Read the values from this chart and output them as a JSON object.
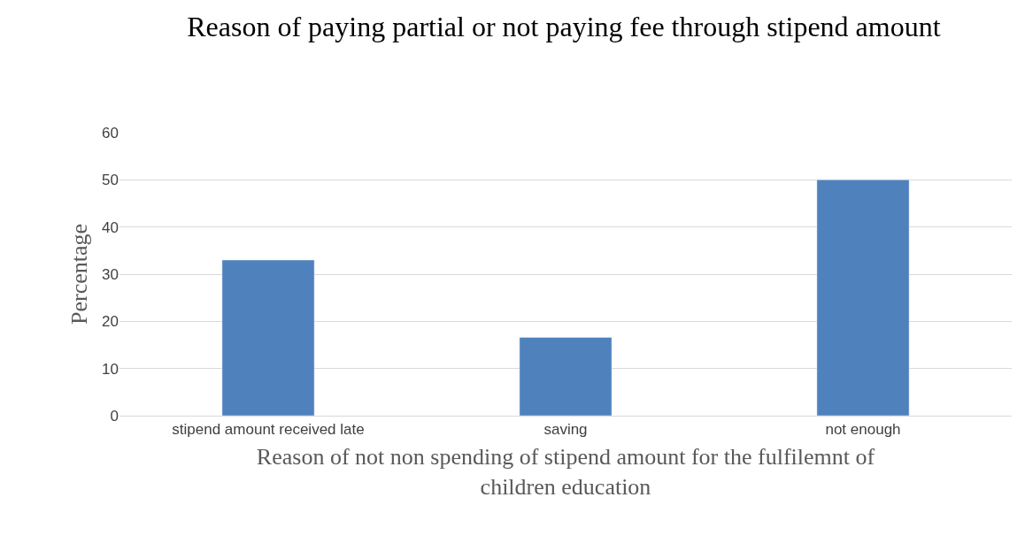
{
  "chart_data": {
    "type": "bar",
    "title": "Reason of paying partial or not paying fee through stipend amount",
    "xlabel": "Reason of not non spending of stipend amount for the fulfilemnt of children education",
    "ylabel": "Percentage",
    "categories": [
      "stipend amount received late",
      "saving",
      "not enough"
    ],
    "values": [
      33,
      16.6,
      50
    ],
    "color": "#4f81bd",
    "ylim": [
      0,
      60
    ],
    "yticks": [
      0,
      10,
      20,
      30,
      40,
      50,
      60
    ],
    "grid": "y",
    "legend": false
  }
}
